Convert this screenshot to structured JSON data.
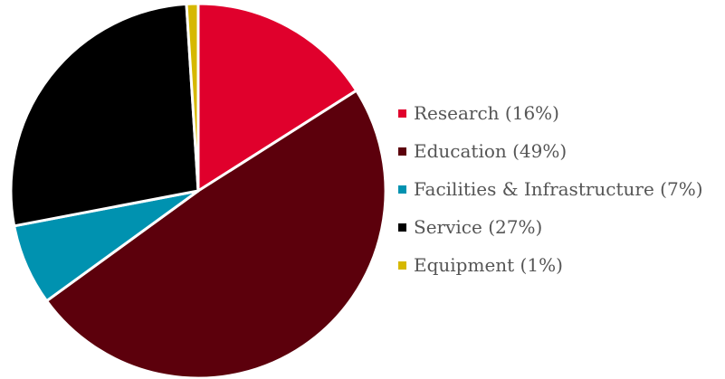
{
  "chart_data": {
    "type": "pie",
    "title": "",
    "start": "12 o'clock",
    "direction": "clockwise",
    "legend_position": "right",
    "slices": [
      {
        "label": "Research (16%)",
        "name": "Research",
        "value": 16,
        "color": "#e0002c"
      },
      {
        "label": "Education (49%)",
        "name": "Education",
        "value": 49,
        "color": "#5c000c"
      },
      {
        "label": "Facilities & Infrastructure (7%)",
        "name": "Facilities & Infrastructure",
        "value": 7,
        "color": "#0092b0"
      },
      {
        "label": "Service (27%)",
        "name": "Service",
        "value": 27,
        "color": "#000000"
      },
      {
        "label": "Equipment (1%)",
        "name": "Equipment",
        "value": 1,
        "color": "#d6b800"
      }
    ]
  }
}
